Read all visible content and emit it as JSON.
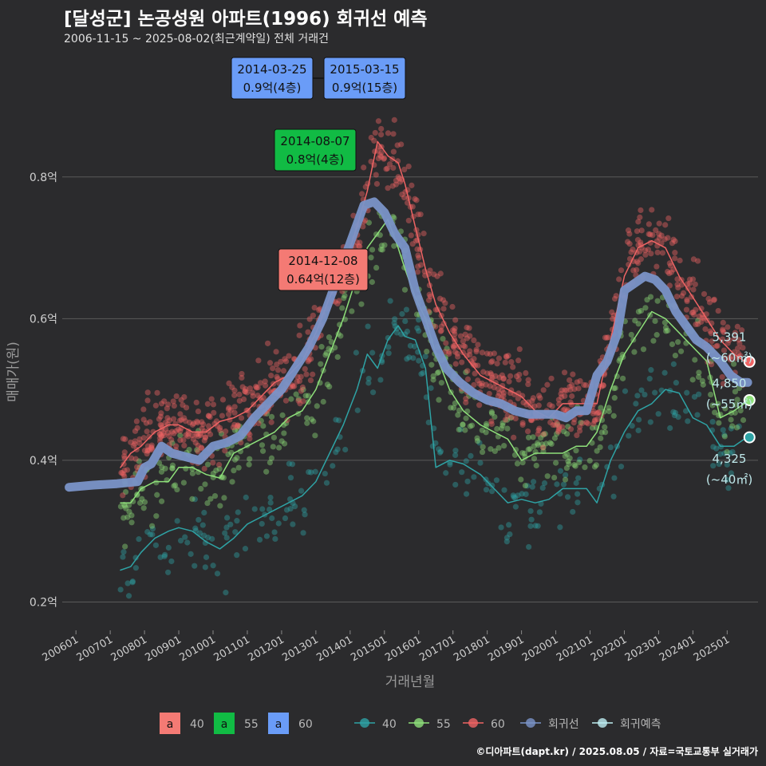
{
  "title": "[달성군] 논공성원 아파트(1996) 회귀선 예측",
  "subtitle": "2006-11-15 ~ 2025-08-02(최근계약일) 전체 거래건",
  "caption": "©디아파트(dapt.kr) / 2025.08.05 / 자료=국토교통부 실거래가",
  "colors": {
    "s40": "#2ea3a5",
    "s55": "#8ee07a",
    "s60": "#f06464",
    "reg": "#7a94c8",
    "pred": "#bfeff2",
    "bg": "#2b2b2d",
    "grid": "#5a5a5a"
  },
  "chart_data": {
    "type": "line",
    "xlabel": "거래년월",
    "ylabel": "매매가(원)",
    "ylim": [
      0.16,
      0.98
    ],
    "x_ticks": [
      "200601",
      "200701",
      "200801",
      "200901",
      "201001",
      "201101",
      "201201",
      "201301",
      "201401",
      "201501",
      "201601",
      "201701",
      "201801",
      "201901",
      "202001",
      "202101",
      "202201",
      "202301",
      "202401",
      "202501"
    ],
    "y_ticks": [
      {
        "value": 0.2,
        "label": "0.2억"
      },
      {
        "value": 0.4,
        "label": "0.4억"
      },
      {
        "value": 0.6,
        "label": "0.6억"
      },
      {
        "value": 0.8,
        "label": "0.8억"
      }
    ],
    "x_range": [
      2005.6,
      2025.9
    ],
    "series": [
      {
        "name": "40",
        "key": "s40",
        "x": [
          2007.3,
          2007.6,
          2007.9,
          2008.3,
          2008.7,
          2009.0,
          2009.4,
          2009.8,
          2010.2,
          2010.6,
          2011.0,
          2011.4,
          2011.8,
          2012.2,
          2012.6,
          2013.0,
          2013.4,
          2013.8,
          2014.2,
          2014.5,
          2014.8,
          2015.1,
          2015.4,
          2015.6,
          2015.9,
          2016.2,
          2016.5,
          2016.9,
          2017.3,
          2017.8,
          2018.2,
          2018.6,
          2019.0,
          2019.4,
          2019.8,
          2020.2,
          2020.6,
          2020.9,
          2021.2,
          2021.6,
          2022.0,
          2022.4,
          2022.8,
          2023.2,
          2023.6,
          2024.0,
          2024.4,
          2024.8,
          2025.2,
          2025.5
        ],
        "y": [
          0.245,
          0.25,
          0.27,
          0.29,
          0.3,
          0.305,
          0.3,
          0.285,
          0.275,
          0.29,
          0.31,
          0.32,
          0.33,
          0.34,
          0.35,
          0.37,
          0.41,
          0.45,
          0.5,
          0.55,
          0.53,
          0.57,
          0.59,
          0.575,
          0.57,
          0.53,
          0.39,
          0.4,
          0.395,
          0.38,
          0.36,
          0.34,
          0.345,
          0.34,
          0.345,
          0.36,
          0.36,
          0.36,
          0.34,
          0.4,
          0.44,
          0.47,
          0.48,
          0.5,
          0.495,
          0.46,
          0.45,
          0.42,
          0.42,
          0.43
        ]
      },
      {
        "name": "55",
        "key": "s55",
        "x": [
          2007.3,
          2007.6,
          2007.9,
          2008.3,
          2008.7,
          2009.0,
          2009.4,
          2009.8,
          2010.2,
          2010.6,
          2011.0,
          2011.4,
          2011.8,
          2012.2,
          2012.6,
          2013.0,
          2013.4,
          2013.8,
          2014.2,
          2014.5,
          2014.8,
          2015.1,
          2015.4,
          2015.6,
          2015.9,
          2016.2,
          2016.5,
          2016.9,
          2017.3,
          2017.8,
          2018.2,
          2018.6,
          2019.0,
          2019.4,
          2019.8,
          2020.2,
          2020.6,
          2020.9,
          2021.2,
          2021.6,
          2022.0,
          2022.4,
          2022.8,
          2023.2,
          2023.6,
          2024.0,
          2024.4,
          2024.8,
          2025.2,
          2025.5
        ],
        "y": [
          0.34,
          0.34,
          0.36,
          0.37,
          0.37,
          0.39,
          0.39,
          0.38,
          0.375,
          0.41,
          0.42,
          0.43,
          0.44,
          0.46,
          0.47,
          0.5,
          0.55,
          0.6,
          0.66,
          0.7,
          0.72,
          0.74,
          0.7,
          0.67,
          0.63,
          0.6,
          0.55,
          0.5,
          0.47,
          0.45,
          0.44,
          0.43,
          0.4,
          0.41,
          0.41,
          0.41,
          0.42,
          0.42,
          0.44,
          0.5,
          0.55,
          0.58,
          0.61,
          0.6,
          0.58,
          0.56,
          0.54,
          0.46,
          0.47,
          0.48
        ]
      },
      {
        "name": "60",
        "key": "s60",
        "x": [
          2007.3,
          2007.6,
          2007.9,
          2008.3,
          2008.7,
          2009.0,
          2009.4,
          2009.8,
          2010.2,
          2010.6,
          2011.0,
          2011.4,
          2011.8,
          2012.2,
          2012.6,
          2013.0,
          2013.4,
          2013.8,
          2014.2,
          2014.5,
          2014.8,
          2015.1,
          2015.4,
          2015.6,
          2015.9,
          2016.2,
          2016.5,
          2016.9,
          2017.3,
          2017.8,
          2018.2,
          2018.6,
          2019.0,
          2019.4,
          2019.8,
          2020.2,
          2020.6,
          2020.9,
          2021.2,
          2021.6,
          2022.0,
          2022.4,
          2022.8,
          2023.2,
          2023.6,
          2024.0,
          2024.4,
          2024.8,
          2025.2,
          2025.5
        ],
        "y": [
          0.39,
          0.41,
          0.42,
          0.44,
          0.45,
          0.45,
          0.44,
          0.44,
          0.455,
          0.46,
          0.47,
          0.49,
          0.51,
          0.52,
          0.54,
          0.58,
          0.63,
          0.67,
          0.73,
          0.78,
          0.85,
          0.83,
          0.82,
          0.79,
          0.73,
          0.67,
          0.62,
          0.58,
          0.55,
          0.52,
          0.51,
          0.5,
          0.49,
          0.47,
          0.46,
          0.48,
          0.48,
          0.48,
          0.48,
          0.57,
          0.66,
          0.7,
          0.71,
          0.7,
          0.66,
          0.63,
          0.6,
          0.57,
          0.55,
          0.54
        ]
      },
      {
        "name": "회귀선",
        "key": "reg",
        "x": [
          2005.8,
          2006.5,
          2007.2,
          2007.8,
          2008.0,
          2008.2,
          2008.5,
          2008.8,
          2009.2,
          2009.6,
          2010.0,
          2010.4,
          2010.8,
          2011.2,
          2011.6,
          2012.0,
          2012.4,
          2012.8,
          2013.2,
          2013.5,
          2013.8,
          2014.1,
          2014.4,
          2014.7,
          2015.0,
          2015.3,
          2015.6,
          2015.9,
          2016.2,
          2016.5,
          2016.8,
          2017.2,
          2017.6,
          2018.0,
          2018.4,
          2018.8,
          2019.2,
          2019.6,
          2020.0,
          2020.3,
          2020.6,
          2020.9,
          2021.2,
          2021.5,
          2021.8,
          2022.0,
          2022.3,
          2022.6,
          2022.9,
          2023.2,
          2023.5,
          2023.8,
          2024.1,
          2024.4,
          2024.8,
          2025.1,
          2025.4,
          2025.6
        ],
        "y": [
          0.362,
          0.365,
          0.367,
          0.37,
          0.39,
          0.395,
          0.42,
          0.41,
          0.405,
          0.4,
          0.42,
          0.425,
          0.435,
          0.46,
          0.48,
          0.5,
          0.53,
          0.56,
          0.6,
          0.64,
          0.68,
          0.72,
          0.76,
          0.765,
          0.75,
          0.72,
          0.7,
          0.64,
          0.6,
          0.56,
          0.53,
          0.51,
          0.495,
          0.485,
          0.48,
          0.47,
          0.465,
          0.465,
          0.465,
          0.46,
          0.47,
          0.47,
          0.52,
          0.54,
          0.58,
          0.64,
          0.65,
          0.66,
          0.655,
          0.64,
          0.61,
          0.59,
          0.57,
          0.56,
          0.54,
          0.52,
          0.51,
          0.51
        ]
      }
    ],
    "prediction": [
      {
        "name": "60",
        "x": 2025.65,
        "y": 0.5391,
        "value": "5,391",
        "area": "(~60㎡)"
      },
      {
        "name": "55",
        "x": 2025.65,
        "y": 0.485,
        "value": "4,850",
        "area": "(~55㎡)"
      },
      {
        "name": "40",
        "x": 2025.65,
        "y": 0.4325,
        "value": "4,325",
        "area": "(~40㎡)"
      }
    ],
    "callouts": [
      {
        "date": "2014-03-25",
        "price": "0.9억(4층)",
        "color": "#6a9cf7",
        "x": 2014.23,
        "y": 0.9
      },
      {
        "date": "2015-03-15",
        "price": "0.9억(15층)",
        "color": "#6a9cf7",
        "x": 2015.2,
        "y": 0.9
      },
      {
        "date": "2014-08-07",
        "price": "0.8억(4층)",
        "color": "#11bb44",
        "x": 2014.6,
        "y": 0.8
      },
      {
        "date": "2014-12-08",
        "price": "0.64억(12층)",
        "color": "#f47a74",
        "x": 2014.93,
        "y": 0.64
      }
    ],
    "legend": {
      "fill": [
        {
          "key": "s60",
          "label": "40",
          "letter": "a"
        },
        {
          "key": "s55_dark",
          "label": "55",
          "letter": "a"
        },
        {
          "key": "s_blue",
          "label": "60",
          "letter": "a"
        }
      ],
      "line": [
        {
          "key": "s40",
          "label": "40"
        },
        {
          "key": "s55",
          "label": "55"
        },
        {
          "key": "s60",
          "label": "60"
        },
        {
          "key": "reg",
          "label": "회귀선"
        },
        {
          "key": "pred",
          "label": "회귀예측"
        }
      ]
    }
  }
}
